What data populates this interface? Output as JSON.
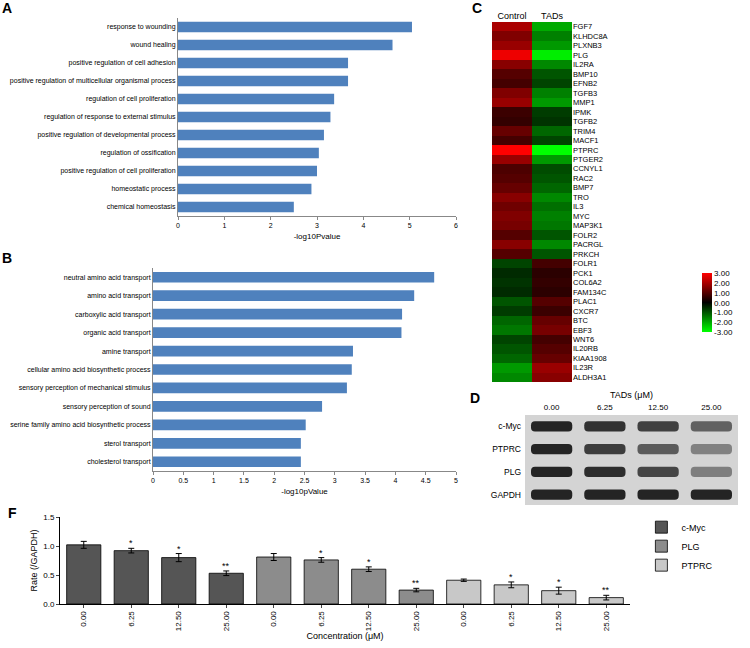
{
  "chart_data": [
    {
      "label": "A",
      "type": "bar",
      "orientation": "horizontal",
      "categories": [
        "response to wounding",
        "wound healing",
        "positive regulation of cell adhesion",
        "positive regulation of multicellular organismal process",
        "regulation of cell proliferation",
        "regulation of response to external stimulus",
        "positive regulation of developmental process",
        "regulation of ossification",
        "positive regulation of cell proliferation",
        "homeostatic process",
        "chemical homeostasis"
      ],
      "values": [
        5.05,
        4.63,
        3.67,
        3.67,
        3.37,
        3.29,
        3.15,
        3.04,
        3.0,
        2.88,
        2.5
      ],
      "color": "#4f81bd",
      "x_label": "-log10Pvalue",
      "xlim": [
        0,
        6
      ],
      "xticks": [
        0,
        1,
        2,
        3,
        4,
        5,
        6
      ],
      "grid": false
    },
    {
      "label": "B",
      "type": "bar",
      "orientation": "horizontal",
      "categories": [
        "neutral amino acid transport",
        "amino acid transport",
        "carboxylic acid transport",
        "organic acid transport",
        "amine transport",
        "cellular amino acid biosynthetic process",
        "sensory perception of mechanical stimulus",
        "sensory perception of sound",
        "serine family amino acid biosynthetic process",
        "sterol transport",
        "cholesterol transport"
      ],
      "values": [
        4.64,
        4.31,
        4.11,
        4.1,
        3.3,
        3.28,
        3.2,
        2.79,
        2.52,
        2.44,
        2.44
      ],
      "color": "#4f81bd",
      "x_label": "-log10pValue",
      "xlim": [
        0,
        5
      ],
      "xticks": [
        0,
        0.5,
        1,
        1.5,
        2,
        2.5,
        3,
        3.5,
        4,
        4.5,
        5
      ],
      "grid": false
    },
    {
      "label": "C",
      "type": "heatmap",
      "x": [
        "Control",
        "TADs"
      ],
      "y": [
        "FGF7",
        "KLHDC8A",
        "PLXNB3",
        "PLG",
        "IL2RA",
        "BMP10",
        "EFNB2",
        "TGFB3",
        "MMP1",
        "IPMK",
        "TGFB2",
        "TRIM4",
        "MACF1",
        "PTPRC",
        "PTGER2",
        "CCNYL1",
        "RAC2",
        "BMP7",
        "TRO",
        "IL3",
        "MYC",
        "MAP3K1",
        "FOLR2",
        "PACRGL",
        "PRKCH",
        "FOLR1",
        "PCK1",
        "COL6A2",
        "FAM134C",
        "PLAC1",
        "CXCR7",
        "BTC",
        "EBF3",
        "WNT6",
        "IL20RB",
        "KIAA1908",
        "IL23R",
        "ALDH3A1"
      ],
      "cells": [
        [
          2.0,
          -2.0
        ],
        [
          1.5,
          -1.5
        ],
        [
          1.8,
          -1.8
        ],
        [
          2.8,
          -2.8
        ],
        [
          1.6,
          -1.6
        ],
        [
          1.0,
          -1.0
        ],
        [
          0.8,
          -0.8
        ],
        [
          1.5,
          -1.5
        ],
        [
          1.8,
          -1.8
        ],
        [
          0.7,
          -0.7
        ],
        [
          0.6,
          -0.6
        ],
        [
          1.2,
          -1.2
        ],
        [
          0.8,
          -0.8
        ],
        [
          3.0,
          -3.0
        ],
        [
          1.8,
          -1.8
        ],
        [
          0.9,
          -0.9
        ],
        [
          1.0,
          -1.0
        ],
        [
          1.2,
          -1.2
        ],
        [
          1.6,
          -1.6
        ],
        [
          1.3,
          -1.3
        ],
        [
          1.5,
          -1.5
        ],
        [
          1.4,
          -1.4
        ],
        [
          1.0,
          -1.0
        ],
        [
          1.6,
          -1.6
        ],
        [
          1.0,
          -1.0
        ],
        [
          -0.8,
          0.8
        ],
        [
          -0.5,
          0.5
        ],
        [
          -0.6,
          0.6
        ],
        [
          -0.5,
          0.5
        ],
        [
          -1.0,
          1.0
        ],
        [
          -0.7,
          0.7
        ],
        [
          -1.2,
          1.2
        ],
        [
          -1.4,
          1.4
        ],
        [
          -0.8,
          0.8
        ],
        [
          -1.0,
          1.0
        ],
        [
          -1.2,
          1.2
        ],
        [
          -1.8,
          1.8
        ],
        [
          -1.6,
          1.6
        ]
      ],
      "zlim": [
        -3,
        3
      ],
      "zticks": [
        {
          "value": 3,
          "label": "3.00"
        },
        {
          "value": 2,
          "label": "2.00"
        },
        {
          "value": 1,
          "label": "1.00"
        },
        {
          "value": 0,
          "label": "0.00"
        },
        {
          "value": -1,
          "label": "-1.00"
        },
        {
          "value": -2,
          "label": "-2.00"
        },
        {
          "value": -3,
          "label": "-3.00"
        }
      ]
    },
    {
      "label": "F",
      "type": "bar",
      "categories": [
        "0.00",
        "6.25",
        "12.50",
        "25.00",
        "0.00",
        "6.25",
        "12.50",
        "25.00",
        "0.00",
        "6.25",
        "12.50",
        "25.00"
      ],
      "series": [
        {
          "name": "c-Myc",
          "color": "#555555",
          "values": [
            1.02,
            0.92,
            0.8,
            0.53,
            null,
            null,
            null,
            null,
            null,
            null,
            null,
            null
          ],
          "errors": [
            0.06,
            0.04,
            0.07,
            0.04,
            null,
            null,
            null,
            null,
            null,
            null,
            null,
            null
          ],
          "significance": [
            null,
            "*",
            "*",
            "**",
            null,
            null,
            null,
            null,
            null,
            null,
            null,
            null
          ]
        },
        {
          "name": "PLG",
          "color": "#8c8c8c",
          "values": [
            null,
            null,
            null,
            null,
            0.81,
            0.76,
            0.6,
            0.24,
            null,
            null,
            null,
            null
          ],
          "errors": [
            null,
            null,
            null,
            null,
            0.06,
            0.04,
            0.04,
            0.03,
            null,
            null,
            null,
            null
          ],
          "significance": [
            null,
            null,
            null,
            null,
            null,
            "*",
            "*",
            "**",
            null,
            null,
            null,
            null
          ]
        },
        {
          "name": "PTPRC",
          "color": "#c8c8c8",
          "values": [
            null,
            null,
            null,
            null,
            null,
            null,
            null,
            null,
            0.41,
            0.33,
            0.23,
            0.11
          ],
          "errors": [
            null,
            null,
            null,
            null,
            null,
            null,
            null,
            null,
            0.02,
            0.05,
            0.06,
            0.04
          ],
          "significance": [
            null,
            null,
            null,
            null,
            null,
            null,
            null,
            null,
            null,
            "*",
            "*",
            "**"
          ]
        }
      ],
      "x_label": "Concentration (μM)",
      "y_label": "Rate (/GAPDH)",
      "ylim": [
        0,
        1.5
      ],
      "yticks": [
        {
          "value": 0,
          "label": "0.0"
        },
        {
          "value": 0.5,
          "label": "0.5"
        },
        {
          "value": 1,
          "label": "1.0"
        },
        {
          "value": 1.5,
          "label": "1.5"
        }
      ],
      "legend": "top right",
      "grid": false
    }
  ],
  "blot": {
    "label": "D",
    "header": "TADs (μM)",
    "lanes": [
      "0.00",
      "6.25",
      "12.50",
      "25.00"
    ],
    "rows": [
      "c-Myc",
      "PTPRC",
      "PLG",
      "GAPDH"
    ]
  }
}
